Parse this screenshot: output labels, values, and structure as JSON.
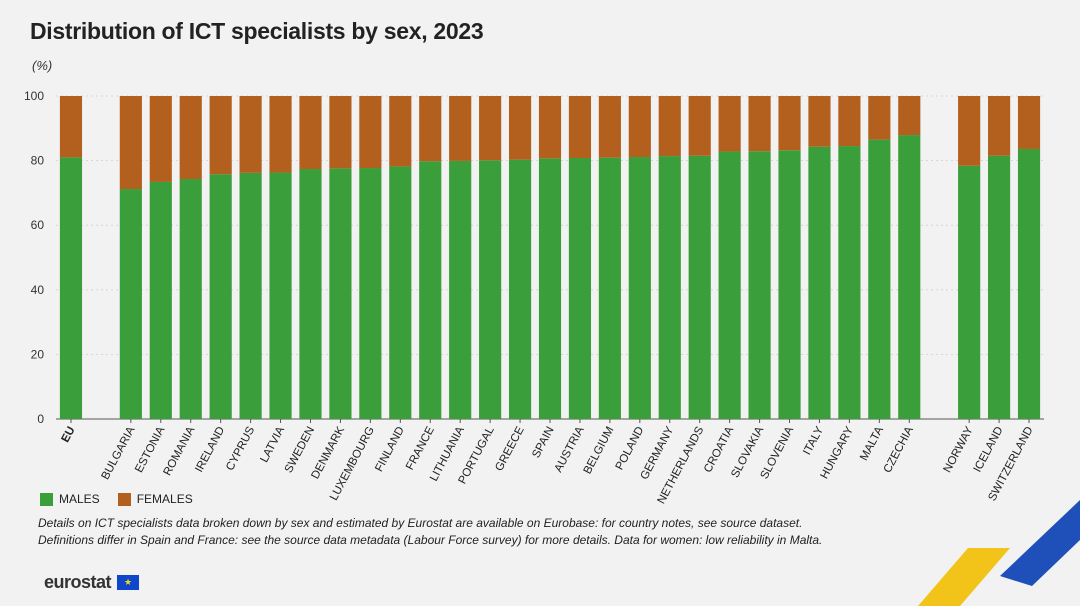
{
  "header": {
    "title": "Distribution of ICT specialists by sex, 2023",
    "unit": "(%)"
  },
  "legend": {
    "males_label": "MALES",
    "females_label": "FEMALES"
  },
  "notes": {
    "line1": "Details on ICT specialists data broken down by sex and estimated by Eurostat are available on Eurobase: for country notes, see source dataset.",
    "line2": "Definitions differ in Spain and France: see the source data metadata (Labour Force survey) for more details. Data for women: low reliability in Malta."
  },
  "branding": {
    "logo_text": "eurostat",
    "flag_icon": "eu-flag-icon"
  },
  "colors": {
    "males": "#3a9e3a",
    "females": "#b3601e",
    "grid": "#cfcfcf",
    "axis": "#555555",
    "corner_blue": "#1f4fb8",
    "corner_yellow": "#f2c318"
  },
  "chart_data": {
    "type": "bar",
    "stacked": true,
    "title": "Distribution of ICT specialists by sex, 2023",
    "ylabel": "(%)",
    "ylim": [
      0,
      100
    ],
    "yticks": [
      0,
      20,
      40,
      60,
      80,
      100
    ],
    "grid": true,
    "legend_position": "bottom-left",
    "groups": [
      [
        "EU"
      ],
      [
        "BULGARIA",
        "ESTONIA",
        "ROMANIA",
        "IRELAND",
        "CYPRUS",
        "LATVIA",
        "SWEDEN",
        "DENMARK",
        "LUXEMBOURG",
        "FINLAND",
        "FRANCE",
        "LITHUANIA",
        "PORTUGAL",
        "GREECE",
        "SPAIN",
        "AUSTRIA",
        "BELGIUM",
        "POLAND",
        "GERMANY",
        "NETHERLANDS",
        "CROATIA",
        "SLOVAKIA",
        "SLOVENIA",
        "ITALY",
        "HUNGARY",
        "MALTA",
        "CZECHIA"
      ],
      [
        "NORWAY",
        "ICELAND",
        "SWITZERLAND"
      ]
    ],
    "categories": [
      "EU",
      "BULGARIA",
      "ESTONIA",
      "ROMANIA",
      "IRELAND",
      "CYPRUS",
      "LATVIA",
      "SWEDEN",
      "DENMARK",
      "LUXEMBOURG",
      "FINLAND",
      "FRANCE",
      "LITHUANIA",
      "PORTUGAL",
      "GREECE",
      "SPAIN",
      "AUSTRIA",
      "BELGIUM",
      "POLAND",
      "GERMANY",
      "NETHERLANDS",
      "CROATIA",
      "SLOVAKIA",
      "SLOVENIA",
      "ITALY",
      "HUNGARY",
      "MALTA",
      "CZECHIA",
      "NORWAY",
      "ICELAND",
      "SWITZERLAND"
    ],
    "series": [
      {
        "name": "MALES",
        "values": [
          81.0,
          71.2,
          73.4,
          74.3,
          75.8,
          76.2,
          76.3,
          77.4,
          77.6,
          77.7,
          78.2,
          79.8,
          79.9,
          80.1,
          80.3,
          80.7,
          80.8,
          80.9,
          81.1,
          81.4,
          81.5,
          82.8,
          82.9,
          83.2,
          84.3,
          84.5,
          86.5,
          87.9,
          78.4,
          81.5,
          83.6
        ]
      },
      {
        "name": "FEMALES",
        "values": [
          19.0,
          28.8,
          26.6,
          25.7,
          24.2,
          23.8,
          23.7,
          22.6,
          22.4,
          22.3,
          21.8,
          20.2,
          20.1,
          19.9,
          19.7,
          19.3,
          19.2,
          19.1,
          18.9,
          18.6,
          18.5,
          17.2,
          17.1,
          16.8,
          15.7,
          15.5,
          13.5,
          12.1,
          21.6,
          18.5,
          16.4
        ]
      }
    ]
  }
}
